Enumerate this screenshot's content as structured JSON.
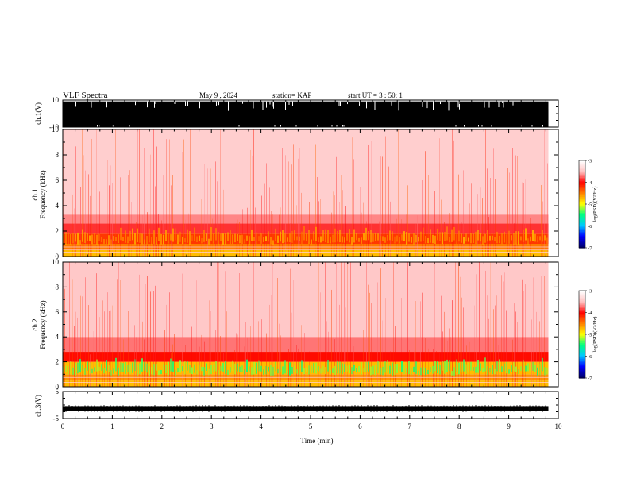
{
  "header": {
    "title": "VLF Spectra",
    "date": "May 9 , 2024",
    "station": "station= KAP",
    "start_time": "start UT = 3 : 50: 1"
  },
  "colors": {
    "background": "#ffffff",
    "axis": "#000000",
    "colormap": [
      "#000070",
      "#0000ff",
      "#00c8ff",
      "#00ff80",
      "#ffff00",
      "#ff8000",
      "#ff0000",
      "#ffc0c0",
      "#ffffff"
    ]
  },
  "chart_data": [
    {
      "id": "ch1-waveform",
      "type": "line",
      "ylabel": "ch.1(V)",
      "ylim": [
        -10,
        10
      ],
      "yticks": [
        "10",
        "-10"
      ],
      "xlim": [
        0,
        10
      ],
      "description_values": {
        "x_end_data_min": 9.8,
        "trace_min_V": -10,
        "trace_max_V": 10
      }
    },
    {
      "id": "ch1-spectrogram",
      "type": "heatmap",
      "ylabel_line1": "ch.1",
      "ylabel_line2": "Frequency (kHz)",
      "ylim": [
        0,
        10
      ],
      "yticks": [
        "0",
        "2",
        "4",
        "6",
        "8",
        "10"
      ],
      "xlim": [
        0,
        10
      ],
      "data_end_min": 9.8,
      "band_levels": [
        {
          "f_low_kHz": 0.0,
          "f_high_kHz": 0.5,
          "log_psd": -4.6
        },
        {
          "f_low_kHz": 0.5,
          "f_high_kHz": 1.0,
          "log_psd": -4.3
        },
        {
          "f_low_kHz": 1.0,
          "f_high_kHz": 1.8,
          "log_psd": -4.0
        },
        {
          "f_low_kHz": 1.8,
          "f_high_kHz": 2.6,
          "log_psd": -3.6
        },
        {
          "f_low_kHz": 2.6,
          "f_high_kHz": 3.3,
          "log_psd": -3.35
        },
        {
          "f_low_kHz": 3.3,
          "f_high_kHz": 10.0,
          "log_psd": -3.05
        }
      ],
      "colorbar": {
        "label": "log(PSD)(V²/Hz)",
        "range": [
          -7,
          -3
        ],
        "ticks": [
          "-3",
          "-4",
          "-5",
          "-6",
          "-7"
        ]
      }
    },
    {
      "id": "ch2-spectrogram",
      "type": "heatmap",
      "ylabel_line1": "ch.2",
      "ylabel_line2": "Frequency (kHz)",
      "ylim": [
        0,
        10
      ],
      "yticks": [
        "0",
        "2",
        "4",
        "6",
        "8",
        "10"
      ],
      "xlim": [
        0,
        10
      ],
      "data_end_min": 9.8,
      "band_levels": [
        {
          "f_low_kHz": 0.0,
          "f_high_kHz": 0.5,
          "log_psd": -4.6
        },
        {
          "f_low_kHz": 0.5,
          "f_high_kHz": 1.0,
          "log_psd": -4.4
        },
        {
          "f_low_kHz": 1.0,
          "f_high_kHz": 2.0,
          "log_psd": -4.6
        },
        {
          "f_low_kHz": 2.0,
          "f_high_kHz": 2.8,
          "log_psd": -3.8
        },
        {
          "f_low_kHz": 2.8,
          "f_high_kHz": 4.0,
          "log_psd": -3.4
        },
        {
          "f_low_kHz": 4.0,
          "f_high_kHz": 10.0,
          "log_psd": -3.1
        }
      ],
      "colorbar": {
        "label": "log(PSD)(V²/Hz)",
        "range": [
          -7,
          -3
        ],
        "ticks": [
          "-3",
          "-4",
          "-5",
          "-6",
          "-7"
        ]
      }
    },
    {
      "id": "ch3-waveform",
      "type": "line",
      "ylabel": "ch.3(V)",
      "ylim": [
        -5,
        5
      ],
      "yticks": [
        "5",
        "-5"
      ],
      "xlim": [
        0,
        10
      ],
      "trace_level_V": -1.3
    },
    {
      "id": "time-axis",
      "type": "axis",
      "xlabel": "Time (min)",
      "xticks": [
        "0",
        "1",
        "2",
        "3",
        "4",
        "5",
        "6",
        "7",
        "8",
        "9",
        "10"
      ]
    }
  ]
}
